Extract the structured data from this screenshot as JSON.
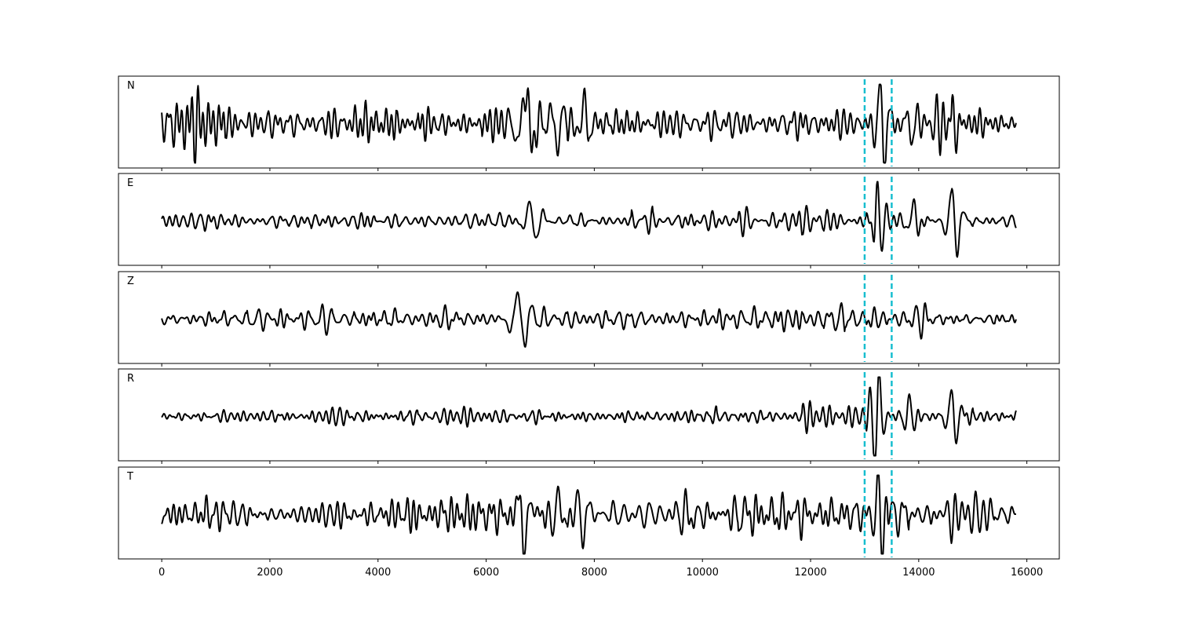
{
  "chart_data": {
    "type": "line",
    "title": "",
    "xlabel": "",
    "ylabel": "",
    "xlim": [
      -800,
      16600
    ],
    "x_ticks": [
      0,
      2000,
      4000,
      6000,
      8000,
      10000,
      12000,
      14000,
      16000
    ],
    "x_tick_labels": [
      "0",
      "2000",
      "4000",
      "6000",
      "8000",
      "10000",
      "12000",
      "14000",
      "16000"
    ],
    "grid": false,
    "legend": "none",
    "trace_color": "#000000",
    "marker_color": "#17becf",
    "vertical_markers": [
      {
        "x": 13000,
        "style": "dashed"
      },
      {
        "x": 13500,
        "style": "dashed"
      }
    ],
    "sample_range": [
      0,
      15800
    ],
    "panels": [
      {
        "label": "N",
        "events": [
          {
            "x": 6720,
            "amp": 0.85,
            "width": 200
          },
          {
            "x": 7320,
            "amp": -0.7,
            "width": 150
          },
          {
            "x": 7800,
            "amp": 0.6,
            "width": 150
          },
          {
            "x": 13270,
            "amp": 0.8,
            "width": 120
          },
          {
            "x": 13380,
            "amp": -0.75,
            "width": 120
          },
          {
            "x": 13880,
            "amp": -0.6,
            "width": 130
          },
          {
            "x": 14640,
            "amp": 0.8,
            "width": 110
          },
          {
            "x": 14680,
            "amp": -0.7,
            "width": 110
          }
        ],
        "noise": 0.32,
        "seed": 11
      },
      {
        "label": "E",
        "events": [
          {
            "x": 6820,
            "amp": 0.4,
            "width": 180
          },
          {
            "x": 6900,
            "amp": -0.4,
            "width": 180
          },
          {
            "x": 13230,
            "amp": 1.0,
            "width": 90
          },
          {
            "x": 13330,
            "amp": -0.45,
            "width": 90
          },
          {
            "x": 13900,
            "amp": 0.6,
            "width": 140
          },
          {
            "x": 14600,
            "amp": 0.45,
            "width": 170
          },
          {
            "x": 14720,
            "amp": -0.55,
            "width": 140
          }
        ],
        "noise": 0.17,
        "seed": 23
      },
      {
        "label": "Z",
        "events": [
          {
            "x": 6620,
            "amp": 0.75,
            "width": 220
          },
          {
            "x": 6700,
            "amp": -0.85,
            "width": 220
          },
          {
            "x": 6760,
            "amp": 0.55,
            "width": 200
          }
        ],
        "noise": 0.19,
        "seed": 37
      },
      {
        "label": "R",
        "events": [
          {
            "x": 13180,
            "amp": -0.9,
            "width": 110
          },
          {
            "x": 13280,
            "amp": 0.7,
            "width": 110
          },
          {
            "x": 13830,
            "amp": 0.55,
            "width": 120
          },
          {
            "x": 14610,
            "amp": 0.55,
            "width": 140
          },
          {
            "x": 14680,
            "amp": -0.45,
            "width": 140
          }
        ],
        "noise": 0.16,
        "seed": 53
      },
      {
        "label": "T",
        "events": [
          {
            "x": 6720,
            "amp": -0.7,
            "width": 180
          },
          {
            "x": 7340,
            "amp": 0.75,
            "width": 140
          },
          {
            "x": 7810,
            "amp": -0.55,
            "width": 150
          },
          {
            "x": 13240,
            "amp": 0.7,
            "width": 110
          },
          {
            "x": 13330,
            "amp": -0.75,
            "width": 110
          },
          {
            "x": 14620,
            "amp": -0.9,
            "width": 110
          }
        ],
        "noise": 0.34,
        "seed": 71
      }
    ]
  }
}
